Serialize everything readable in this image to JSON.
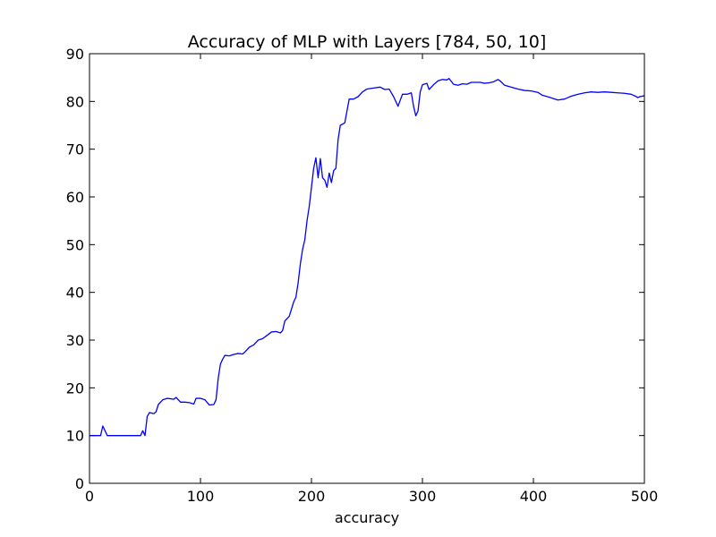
{
  "chart_data": {
    "type": "line",
    "title": "Accuracy of MLP with Layers [784, 50, 10]",
    "xlabel": "accuracy",
    "ylabel": "",
    "xlim": [
      0,
      500
    ],
    "ylim": [
      0,
      90
    ],
    "xticks": [
      0,
      100,
      200,
      300,
      400,
      500
    ],
    "yticks": [
      0,
      10,
      20,
      30,
      40,
      50,
      60,
      70,
      80,
      90
    ],
    "grid": false,
    "line_color": "#0000ff",
    "series": [
      {
        "points": [
          [
            0,
            10
          ],
          [
            10,
            10
          ],
          [
            12,
            12
          ],
          [
            14,
            11
          ],
          [
            16,
            10
          ],
          [
            20,
            10
          ],
          [
            30,
            10
          ],
          [
            40,
            10
          ],
          [
            46,
            10
          ],
          [
            48,
            11
          ],
          [
            50,
            10
          ],
          [
            52,
            14
          ],
          [
            54,
            14.8
          ],
          [
            58,
            14.6
          ],
          [
            60,
            15
          ],
          [
            62,
            16.5
          ],
          [
            66,
            17.5
          ],
          [
            70,
            17.8
          ],
          [
            76,
            17.6
          ],
          [
            78,
            18
          ],
          [
            82,
            17
          ],
          [
            86,
            17
          ],
          [
            90,
            16.9
          ],
          [
            94,
            16.6
          ],
          [
            96,
            17.8
          ],
          [
            100,
            17.8
          ],
          [
            104,
            17.5
          ],
          [
            108,
            16.4
          ],
          [
            112,
            16.5
          ],
          [
            114,
            17.5
          ],
          [
            116,
            22
          ],
          [
            118,
            25
          ],
          [
            120,
            26
          ],
          [
            122,
            26.8
          ],
          [
            126,
            26.7
          ],
          [
            130,
            27
          ],
          [
            134,
            27.2
          ],
          [
            138,
            27.1
          ],
          [
            140,
            27.5
          ],
          [
            144,
            28.5
          ],
          [
            148,
            29
          ],
          [
            152,
            30
          ],
          [
            156,
            30.3
          ],
          [
            160,
            31
          ],
          [
            164,
            31.7
          ],
          [
            168,
            31.8
          ],
          [
            172,
            31.5
          ],
          [
            174,
            32
          ],
          [
            176,
            34
          ],
          [
            180,
            35
          ],
          [
            184,
            38
          ],
          [
            186,
            39
          ],
          [
            188,
            42
          ],
          [
            190,
            46
          ],
          [
            192,
            49
          ],
          [
            194,
            51
          ],
          [
            196,
            55
          ],
          [
            198,
            58
          ],
          [
            200,
            62
          ],
          [
            202,
            66
          ],
          [
            204,
            68.2
          ],
          [
            206,
            64
          ],
          [
            208,
            68
          ],
          [
            210,
            64
          ],
          [
            212,
            63.5
          ],
          [
            214,
            62
          ],
          [
            216,
            65
          ],
          [
            218,
            63
          ],
          [
            220,
            65.5
          ],
          [
            222,
            66
          ],
          [
            224,
            72
          ],
          [
            226,
            75
          ],
          [
            230,
            75.5
          ],
          [
            232,
            78
          ],
          [
            234,
            80.5
          ],
          [
            238,
            80.5
          ],
          [
            242,
            81
          ],
          [
            246,
            82
          ],
          [
            250,
            82.6
          ],
          [
            256,
            82.8
          ],
          [
            262,
            83
          ],
          [
            266,
            82.5
          ],
          [
            270,
            82.6
          ],
          [
            274,
            81
          ],
          [
            278,
            79
          ],
          [
            282,
            81.5
          ],
          [
            286,
            81.5
          ],
          [
            290,
            81.8
          ],
          [
            292,
            79
          ],
          [
            294,
            77
          ],
          [
            296,
            78
          ],
          [
            298,
            82
          ],
          [
            300,
            83.5
          ],
          [
            304,
            83.8
          ],
          [
            306,
            82.5
          ],
          [
            310,
            83.5
          ],
          [
            314,
            84.3
          ],
          [
            318,
            84.6
          ],
          [
            322,
            84.5
          ],
          [
            324,
            84.8
          ],
          [
            328,
            83.6
          ],
          [
            332,
            83.4
          ],
          [
            336,
            83.7
          ],
          [
            340,
            83.6
          ],
          [
            344,
            84
          ],
          [
            348,
            84
          ],
          [
            352,
            84
          ],
          [
            356,
            83.8
          ],
          [
            360,
            83.9
          ],
          [
            364,
            84.1
          ],
          [
            368,
            84.6
          ],
          [
            370,
            84.3
          ],
          [
            374,
            83.4
          ],
          [
            380,
            83
          ],
          [
            386,
            82.6
          ],
          [
            392,
            82.3
          ],
          [
            398,
            82.2
          ],
          [
            404,
            81.9
          ],
          [
            408,
            81.3
          ],
          [
            414,
            80.9
          ],
          [
            418,
            80.6
          ],
          [
            422,
            80.3
          ],
          [
            428,
            80.5
          ],
          [
            434,
            81.1
          ],
          [
            440,
            81.5
          ],
          [
            446,
            81.8
          ],
          [
            452,
            82
          ],
          [
            458,
            81.9
          ],
          [
            464,
            82
          ],
          [
            470,
            81.9
          ],
          [
            476,
            81.8
          ],
          [
            482,
            81.7
          ],
          [
            488,
            81.5
          ],
          [
            492,
            81.1
          ],
          [
            494,
            80.8
          ],
          [
            496,
            81
          ],
          [
            500,
            81.2
          ]
        ]
      }
    ]
  }
}
